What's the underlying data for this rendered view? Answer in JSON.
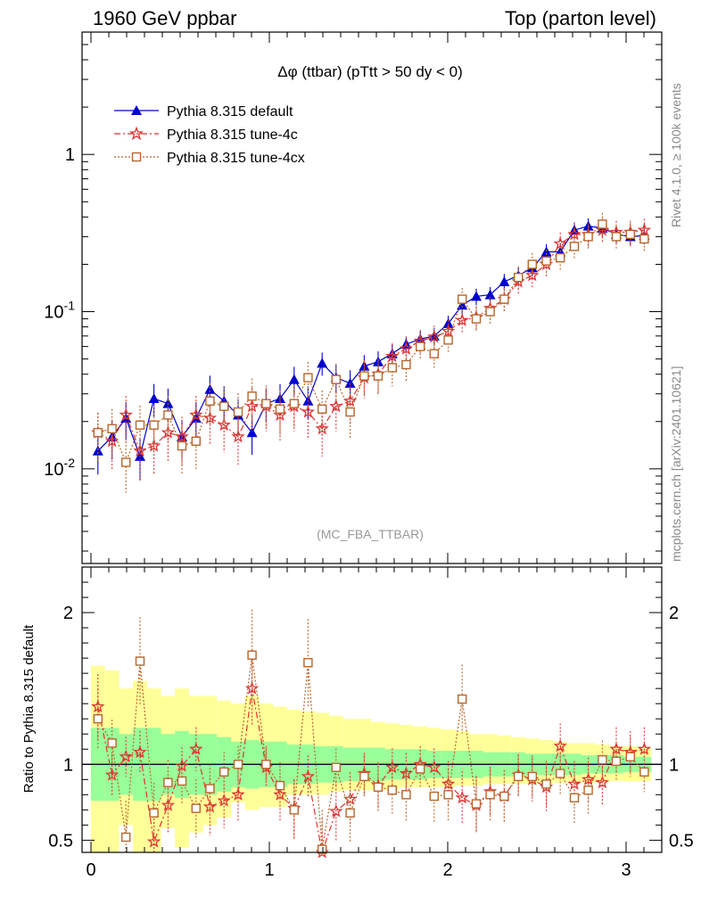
{
  "header": {
    "left": "1960 GeV ppbar",
    "right": "Top (parton level)"
  },
  "side_labels": {
    "rivet": "Rivet 4.1.0, ≥ 100k events",
    "mcplots": "mcplots.cern.ch [arXiv:2401.10621]"
  },
  "colors": {
    "default": "#0000cc",
    "tune4c": "#dd3333",
    "tune4cx": "#b8652a",
    "band_yellow": "#ffff99",
    "band_green": "#99ff99"
  },
  "chart_data": [
    {
      "type": "line",
      "title": "Δφ (ttbar) (pTtt > 50 dy < 0)",
      "analysis": "(MC_FBA_TTBAR)",
      "yscale": "log",
      "xlim": [
        -0.05,
        3.2
      ],
      "ylim": [
        0.0025,
        6.0
      ],
      "ytick_labels": [
        "10^-2",
        "10^-1",
        "1"
      ],
      "xlabel": "",
      "ylabel": "",
      "legend_position": "top-left",
      "x": [
        0.039,
        0.118,
        0.196,
        0.275,
        0.353,
        0.432,
        0.51,
        0.589,
        0.667,
        0.746,
        0.825,
        0.903,
        0.982,
        1.06,
        1.139,
        1.217,
        1.296,
        1.374,
        1.453,
        1.532,
        1.61,
        1.689,
        1.767,
        1.846,
        1.924,
        2.003,
        2.081,
        2.16,
        2.238,
        2.317,
        2.396,
        2.474,
        2.553,
        2.631,
        2.71,
        2.788,
        2.867,
        2.945,
        3.024,
        3.102
      ],
      "series": [
        {
          "name": "Pythia 8.315 default",
          "marker": "triangle",
          "values": [
            0.013,
            0.016,
            0.021,
            0.012,
            0.028,
            0.026,
            0.016,
            0.021,
            0.032,
            0.027,
            0.022,
            0.017,
            0.026,
            0.028,
            0.037,
            0.027,
            0.047,
            0.038,
            0.035,
            0.045,
            0.048,
            0.054,
            0.062,
            0.067,
            0.07,
            0.084,
            0.11,
            0.125,
            0.128,
            0.155,
            0.17,
            0.19,
            0.24,
            0.24,
            0.33,
            0.35,
            0.34,
            0.31,
            0.3,
            0.305
          ]
        },
        {
          "name": "Pythia 8.315 tune-4c",
          "marker": "star",
          "values": [
            0.017,
            0.015,
            0.022,
            0.013,
            0.014,
            0.017,
            0.016,
            0.022,
            0.021,
            0.019,
            0.016,
            0.025,
            0.025,
            0.022,
            0.025,
            0.023,
            0.018,
            0.025,
            0.027,
            0.038,
            0.04,
            0.052,
            0.058,
            0.065,
            0.069,
            0.075,
            0.088,
            0.092,
            0.105,
            0.12,
            0.155,
            0.17,
            0.2,
            0.27,
            0.31,
            0.31,
            0.33,
            0.32,
            0.32,
            0.33
          ]
        },
        {
          "name": "Pythia 8.315 tune-4cx",
          "marker": "open-square",
          "values": [
            0.017,
            0.018,
            0.011,
            0.019,
            0.019,
            0.022,
            0.014,
            0.015,
            0.027,
            0.025,
            0.023,
            0.029,
            0.026,
            0.024,
            0.026,
            0.038,
            0.024,
            0.037,
            0.023,
            0.039,
            0.039,
            0.044,
            0.046,
            0.06,
            0.054,
            0.066,
            0.12,
            0.09,
            0.1,
            0.12,
            0.165,
            0.2,
            0.21,
            0.22,
            0.26,
            0.3,
            0.36,
            0.3,
            0.31,
            0.29
          ]
        }
      ]
    },
    {
      "type": "line",
      "title": "",
      "xlim": [
        -0.05,
        3.2
      ],
      "ylim": [
        0.42,
        2.3
      ],
      "x_tick_labels": [
        "0",
        "1",
        "2",
        "3"
      ],
      "y_tick_labels": [
        "0.5",
        "1",
        "2"
      ],
      "ylabel": "Ratio to Pythia 8.315 default",
      "bands": {
        "yellow_lower": [
          0.35,
          0.38,
          0.6,
          0.38,
          0.38,
          0.58,
          0.45,
          0.55,
          0.6,
          0.65,
          0.75,
          0.7,
          0.72,
          0.72,
          0.8,
          0.8,
          0.8,
          0.82,
          0.83,
          0.83,
          0.83,
          0.83,
          0.85,
          0.85,
          0.85,
          0.85,
          0.86,
          0.86,
          0.87,
          0.87,
          0.87,
          0.87,
          0.87,
          0.88,
          0.88,
          0.88,
          0.88,
          0.89,
          0.89,
          0.89
        ],
        "yellow_upper": [
          1.65,
          1.62,
          1.5,
          1.55,
          1.5,
          1.45,
          1.5,
          1.45,
          1.45,
          1.42,
          1.4,
          1.45,
          1.4,
          1.38,
          1.36,
          1.35,
          1.34,
          1.32,
          1.3,
          1.3,
          1.28,
          1.27,
          1.26,
          1.25,
          1.24,
          1.23,
          1.22,
          1.2,
          1.2,
          1.19,
          1.18,
          1.17,
          1.16,
          1.15,
          1.14,
          1.14,
          1.13,
          1.12,
          1.12,
          1.11
        ],
        "green_lower": [
          0.76,
          0.76,
          0.8,
          0.76,
          0.76,
          0.8,
          0.78,
          0.8,
          0.8,
          0.82,
          0.85,
          0.84,
          0.85,
          0.85,
          0.87,
          0.87,
          0.88,
          0.88,
          0.89,
          0.89,
          0.89,
          0.9,
          0.9,
          0.9,
          0.91,
          0.91,
          0.91,
          0.91,
          0.92,
          0.92,
          0.92,
          0.93,
          0.93,
          0.93,
          0.93,
          0.94,
          0.94,
          0.94,
          0.95,
          0.95
        ],
        "green_upper": [
          1.24,
          1.24,
          1.2,
          1.24,
          1.24,
          1.2,
          1.22,
          1.2,
          1.2,
          1.18,
          1.15,
          1.16,
          1.15,
          1.15,
          1.13,
          1.13,
          1.12,
          1.12,
          1.11,
          1.11,
          1.11,
          1.1,
          1.1,
          1.1,
          1.09,
          1.09,
          1.09,
          1.09,
          1.08,
          1.08,
          1.08,
          1.07,
          1.07,
          1.07,
          1.07,
          1.06,
          1.06,
          1.06,
          1.05,
          1.05
        ]
      },
      "series": [
        {
          "name": "Pythia 8.315 tune-4c / default",
          "marker": "star",
          "values": [
            1.38,
            0.93,
            1.05,
            1.08,
            0.49,
            0.73,
            0.99,
            1.1,
            0.72,
            0.76,
            0.8,
            1.5,
            0.98,
            0.8,
            0.71,
            0.92,
            0.37,
            0.69,
            0.77,
            0.94,
            0.86,
            0.98,
            0.94,
            1.0,
            0.98,
            0.87,
            0.78,
            0.73,
            0.82,
            0.79,
            0.93,
            0.9,
            0.85,
            1.12,
            0.87,
            0.9,
            0.88,
            1.1,
            1.08,
            1.1
          ]
        },
        {
          "name": "Pythia 8.315 tune-4cx / default",
          "marker": "open-square",
          "values": [
            1.3,
            1.14,
            0.52,
            1.68,
            0.68,
            0.88,
            0.89,
            0.71,
            0.84,
            0.95,
            1.0,
            1.72,
            1.0,
            0.86,
            0.7,
            1.67,
            0.44,
            0.98,
            0.68,
            0.92,
            0.85,
            0.83,
            0.8,
            0.97,
            0.79,
            0.8,
            1.43,
            0.74,
            0.8,
            0.79,
            0.92,
            0.92,
            0.87,
            0.94,
            0.78,
            0.83,
            1.03,
            1.02,
            1.05,
            0.95
          ]
        }
      ]
    }
  ]
}
